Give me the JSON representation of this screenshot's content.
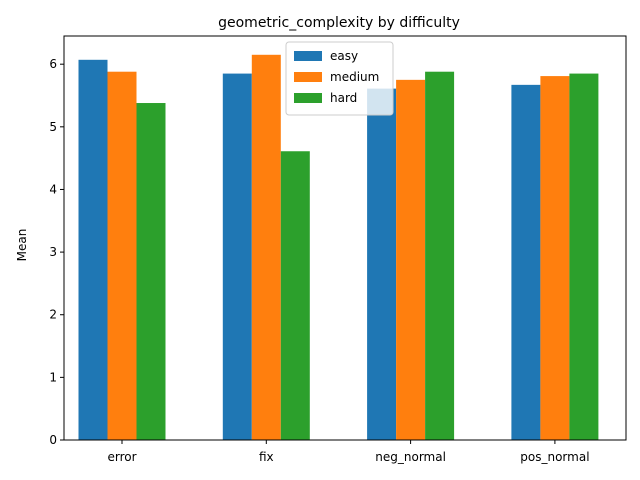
{
  "chart_data": {
    "type": "bar",
    "title": "geometric_complexity by difficulty",
    "xlabel": "",
    "ylabel": "Mean",
    "categories": [
      "error",
      "fix",
      "neg_normal",
      "pos_normal"
    ],
    "series": [
      {
        "name": "easy",
        "color": "#1f77b4",
        "values": [
          6.07,
          5.85,
          5.61,
          5.67
        ]
      },
      {
        "name": "medium",
        "color": "#ff7f0e",
        "values": [
          5.88,
          6.15,
          5.75,
          5.81
        ]
      },
      {
        "name": "hard",
        "color": "#2ca02c",
        "values": [
          5.38,
          4.61,
          5.88,
          5.85
        ]
      }
    ],
    "ylim": [
      0,
      6.45
    ],
    "yticks": [
      0,
      1,
      2,
      3,
      4,
      5,
      6
    ],
    "grid": false,
    "legend_position": "top-center"
  }
}
